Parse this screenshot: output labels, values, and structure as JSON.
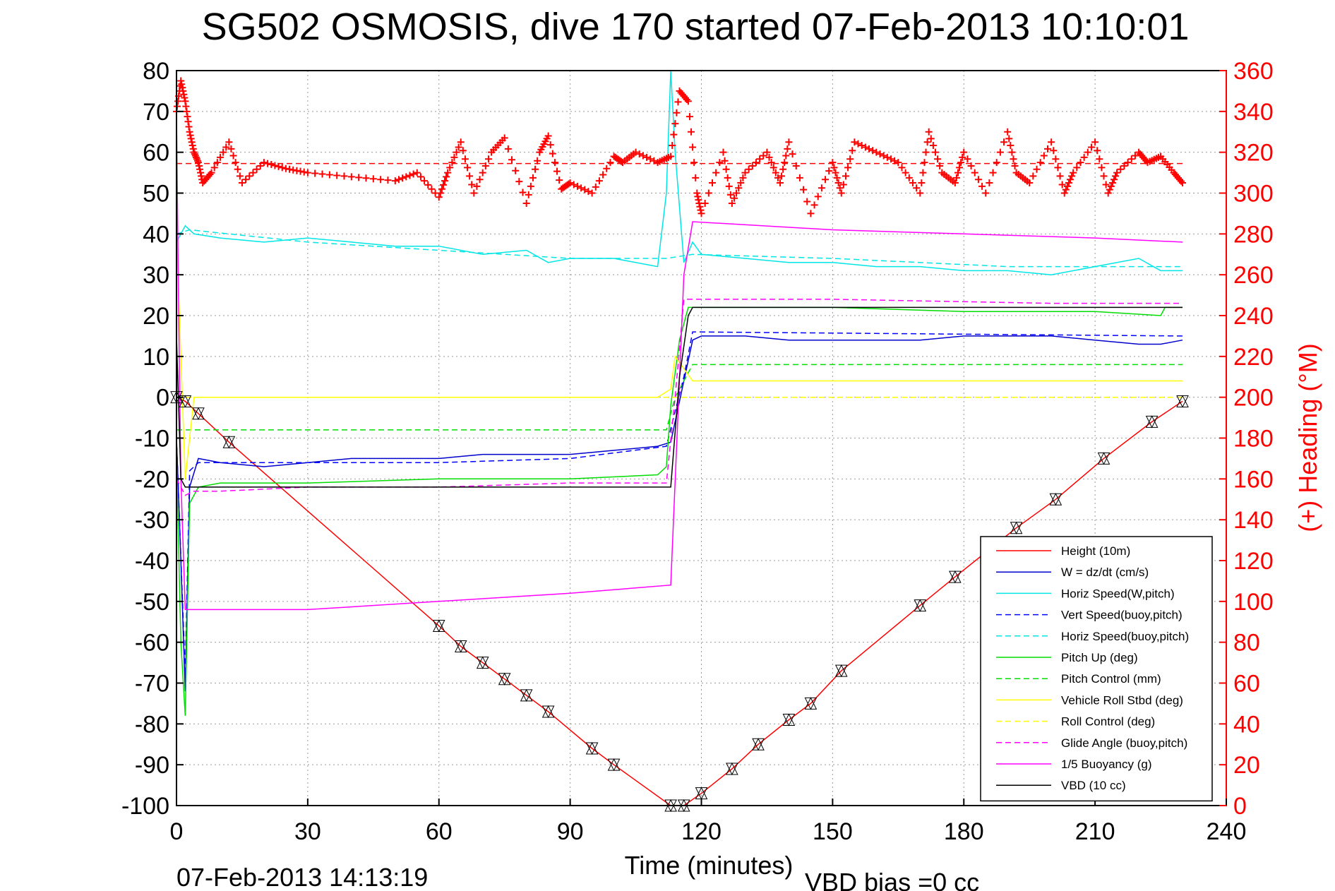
{
  "chart_data": {
    "type": "line",
    "title": "SG502 OSMOSIS, dive 170 started 07-Feb-2013 10:10:01",
    "xlabel": "Time (minutes)",
    "ylabel_right": "(+) Heading (°M)",
    "xlim": [
      0,
      240
    ],
    "ylim": [
      -100,
      80
    ],
    "ylim_right": [
      0,
      360
    ],
    "x_ticks": [
      "0",
      "30",
      "60",
      "90",
      "120",
      "150",
      "180",
      "210",
      "240"
    ],
    "y_ticks": [
      "80",
      "70",
      "60",
      "50",
      "40",
      "30",
      "20",
      "10",
      "0",
      "-10",
      "-20",
      "-30",
      "-40",
      "-50",
      "-60",
      "-70",
      "-80",
      "-90",
      "-100"
    ],
    "y_ticks_right": [
      "360",
      "340",
      "320",
      "300",
      "280",
      "260",
      "240",
      "220",
      "200",
      "180",
      "160",
      "140",
      "120",
      "100",
      "80",
      "60",
      "40",
      "20",
      "0"
    ],
    "grid": true,
    "legend_position": "bottom-right",
    "footer_left": "07-Feb-2013 14:13:19",
    "footer_right": "VBD bias =0 cc",
    "series": [
      {
        "name": "Height (10m)",
        "color": "#ff0000",
        "style": "solid",
        "x": [
          0,
          2,
          5,
          12,
          60,
          65,
          70,
          75,
          80,
          85,
          95,
          100,
          113,
          116,
          120,
          127,
          133,
          140,
          145,
          152,
          170,
          178,
          192,
          201,
          212,
          223,
          230
        ],
        "y": [
          0,
          -1,
          -4,
          -11,
          -56,
          -61,
          -65,
          -69,
          -73,
          -77,
          -86,
          -90,
          -100,
          -100,
          -97,
          -91,
          -85,
          -79,
          -75,
          -67,
          -51,
          -44,
          -32,
          -25,
          -15,
          -6,
          -1
        ]
      },
      {
        "name": "W = dz/dt (cm/s)",
        "color": "#0000cc",
        "style": "solid",
        "x": [
          0,
          1,
          2,
          3,
          5,
          10,
          20,
          30,
          40,
          50,
          60,
          70,
          80,
          90,
          100,
          110,
          113,
          116,
          118,
          120,
          130,
          140,
          150,
          160,
          170,
          180,
          190,
          200,
          210,
          220,
          225,
          230
        ],
        "y": [
          -10,
          -40,
          -72,
          -22,
          -15,
          -16,
          -17,
          -16,
          -15,
          -15,
          -15,
          -14,
          -14,
          -14,
          -13,
          -12,
          -11,
          4,
          14,
          15,
          15,
          14,
          14,
          14,
          14,
          15,
          15,
          15,
          14,
          13,
          13,
          14
        ]
      },
      {
        "name": "Horiz Speed(W,pitch)",
        "color": "#00e5e5",
        "style": "solid",
        "x": [
          0,
          2,
          4,
          10,
          20,
          30,
          40,
          50,
          60,
          70,
          80,
          85,
          90,
          100,
          110,
          112,
          113,
          114,
          116,
          118,
          120,
          130,
          140,
          150,
          160,
          170,
          180,
          190,
          200,
          210,
          220,
          225,
          230
        ],
        "y": [
          38,
          42,
          40,
          39,
          38,
          39,
          38,
          37,
          37,
          35,
          36,
          33,
          34,
          34,
          32,
          50,
          80,
          60,
          33,
          38,
          35,
          34,
          33,
          33,
          32,
          32,
          31,
          31,
          30,
          32,
          34,
          31,
          31
        ]
      },
      {
        "name": "Vert Speed(buoy,pitch)",
        "color": "#0000ff",
        "style": "dashed",
        "x": [
          0,
          2,
          3,
          5,
          30,
          60,
          90,
          112,
          116,
          118,
          230
        ],
        "y": [
          -10,
          -68,
          -18,
          -16,
          -16,
          -16,
          -15,
          -12,
          5,
          16,
          15
        ]
      },
      {
        "name": "Horiz Speed(buoy,pitch)",
        "color": "#00e5e5",
        "style": "dashed",
        "x": [
          0,
          3,
          30,
          60,
          90,
          112,
          118,
          150,
          190,
          230
        ],
        "y": [
          40,
          41,
          38,
          36,
          34,
          34,
          35,
          34,
          32,
          32
        ]
      },
      {
        "name": "Pitch Up (deg)",
        "color": "#00dd00",
        "style": "solid",
        "x": [
          0,
          1,
          2,
          3,
          5,
          10,
          30,
          60,
          90,
          110,
          112,
          113,
          115,
          117,
          120,
          150,
          180,
          210,
          225,
          226,
          230
        ],
        "y": [
          -15,
          -60,
          -78,
          -26,
          -22,
          -21,
          -21,
          -20,
          -20,
          -19,
          -17,
          -2,
          14,
          22,
          22,
          22,
          21,
          21,
          20,
          22,
          22
        ]
      },
      {
        "name": "Pitch Control (mm)",
        "color": "#00dd00",
        "style": "dashed",
        "x": [
          0,
          2,
          10,
          112,
          114,
          118,
          230
        ],
        "y": [
          -8,
          -8,
          -8,
          -8,
          0,
          8,
          8
        ]
      },
      {
        "name": "Vehicle Roll Stbd (deg)",
        "color": "#ffff00",
        "style": "solid",
        "x": [
          0,
          2,
          4,
          6,
          10,
          30,
          60,
          90,
          110,
          113,
          114,
          118,
          120,
          150,
          180,
          210,
          225,
          230
        ],
        "y": [
          40,
          -20,
          0,
          0,
          0,
          0,
          0,
          0,
          0,
          2,
          10,
          4,
          4,
          4,
          4,
          4,
          4,
          4
        ]
      },
      {
        "name": "Roll Control (deg)",
        "color": "#ffff00",
        "style": "dashed",
        "x": [
          0,
          230
        ],
        "y": [
          0,
          0
        ]
      },
      {
        "name": "Glide Angle (buoy,pitch)",
        "color": "#ff00ff",
        "style": "dashed",
        "x": [
          0,
          2,
          4,
          10,
          30,
          60,
          90,
          112,
          114,
          116,
          118,
          150,
          200,
          230
        ],
        "y": [
          -20,
          -24,
          -23,
          -23,
          -22,
          -22,
          -21,
          -21,
          0,
          24,
          24,
          24,
          23,
          23
        ]
      },
      {
        "name": "1/5 Buoyancy (g)",
        "color": "#ff00ff",
        "style": "solid",
        "x": [
          0,
          0.5,
          1,
          2,
          30,
          60,
          90,
          113,
          116,
          118,
          150,
          180,
          210,
          230
        ],
        "y": [
          70,
          20,
          -20,
          -52,
          -52,
          -50,
          -48,
          -46,
          30,
          43,
          41,
          40,
          39,
          38
        ]
      },
      {
        "name": "VBD (10 cc)",
        "color": "#000000",
        "style": "solid",
        "x": [
          0,
          1,
          2,
          112,
          113,
          115,
          117,
          118,
          230
        ],
        "y": [
          15,
          -20,
          -22,
          -22,
          -22,
          5,
          20,
          22,
          22
        ]
      },
      {
        "name": "Heading",
        "axis": "right",
        "color": "#ff0000",
        "marker": "+",
        "x": [
          0,
          1,
          2,
          3,
          4,
          5,
          6,
          8,
          12,
          15,
          20,
          25,
          30,
          40,
          50,
          55,
          60,
          62,
          65,
          68,
          72,
          75,
          80,
          83,
          85,
          88,
          90,
          95,
          100,
          102,
          105,
          110,
          113,
          115,
          117,
          119,
          120,
          125,
          127,
          130,
          135,
          138,
          140,
          145,
          150,
          152,
          155,
          160,
          165,
          170,
          172,
          175,
          178,
          180,
          185,
          190,
          192,
          195,
          200,
          203,
          205,
          210,
          213,
          215,
          220,
          222,
          225,
          228,
          230
        ],
        "y": [
          340,
          355,
          345,
          330,
          320,
          315,
          305,
          310,
          325,
          305,
          315,
          312,
          310,
          308,
          306,
          310,
          298,
          310,
          325,
          300,
          320,
          327,
          295,
          320,
          328,
          302,
          305,
          300,
          318,
          315,
          320,
          315,
          318,
          350,
          345,
          300,
          290,
          320,
          295,
          310,
          320,
          305,
          325,
          290,
          315,
          300,
          325,
          320,
          315,
          300,
          330,
          310,
          305,
          320,
          300,
          330,
          310,
          305,
          325,
          300,
          310,
          325,
          300,
          310,
          320,
          315,
          318,
          310,
          305
        ]
      }
    ]
  }
}
